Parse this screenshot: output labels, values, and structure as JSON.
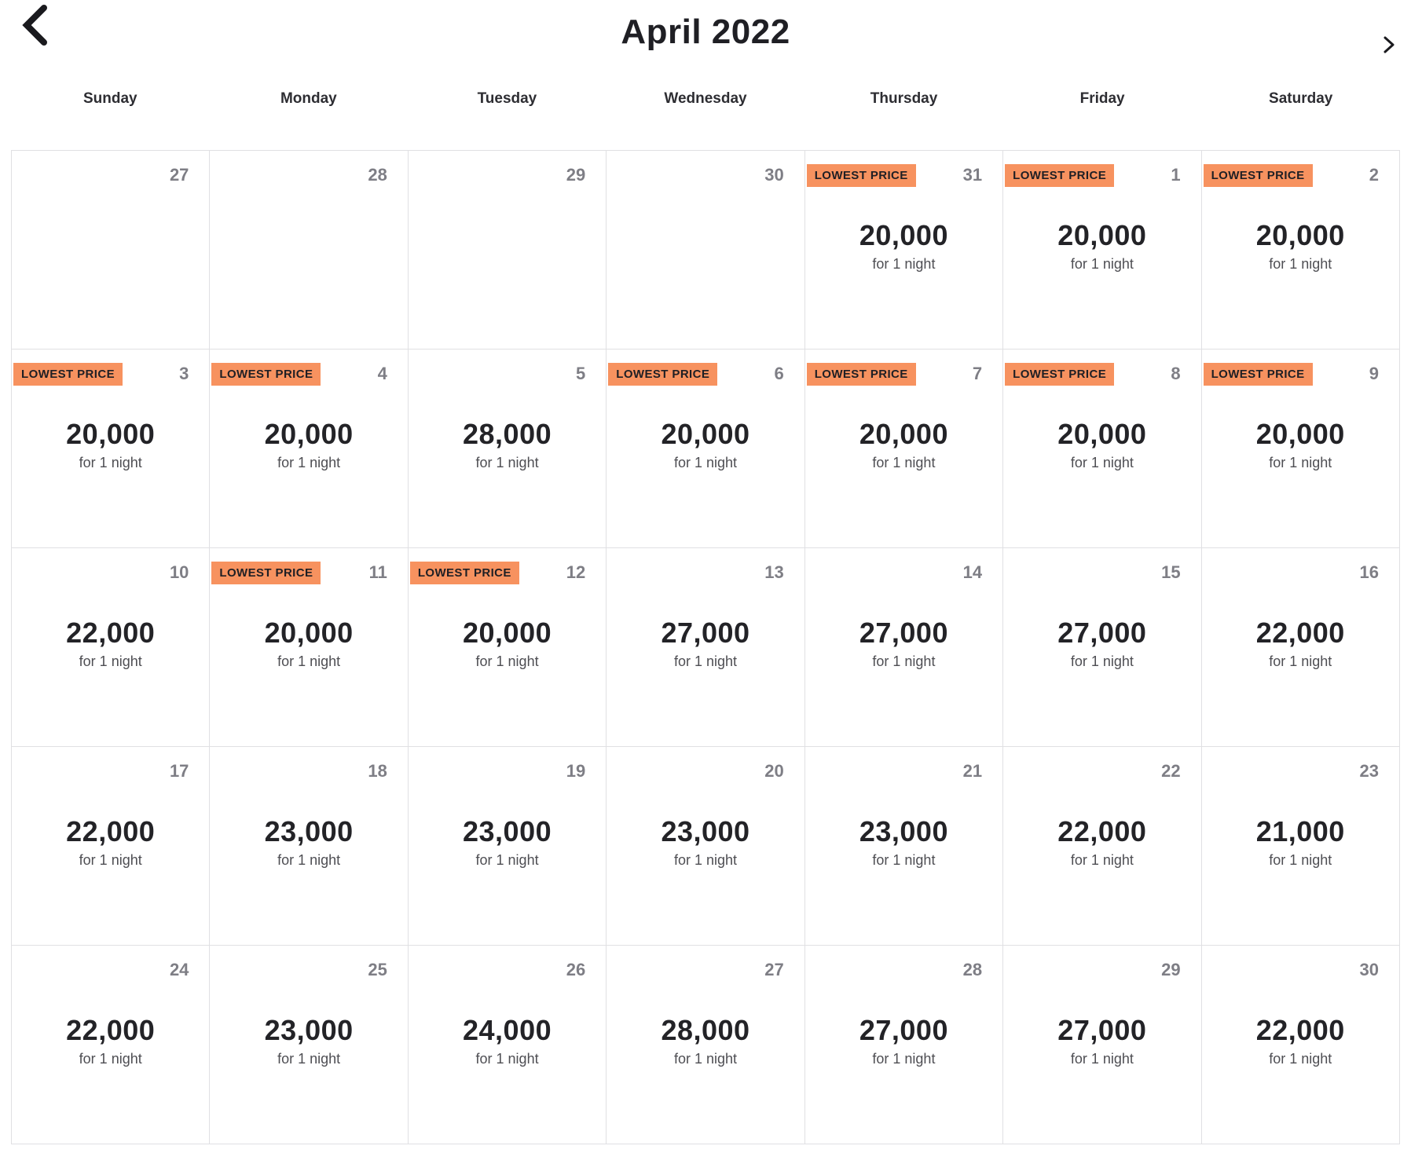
{
  "header": {
    "title": "April 2022",
    "prev_icon": "chevron-left-icon",
    "next_icon": "chevron-right-icon"
  },
  "weekdays": [
    "Sunday",
    "Monday",
    "Tuesday",
    "Wednesday",
    "Thursday",
    "Friday",
    "Saturday"
  ],
  "badge_label": "LOWEST PRICE",
  "price_unit_label": "for 1 night",
  "colors": {
    "badge_bg": "#F7925F",
    "badge_text": "#1F1F24",
    "date_text": "#7E7E85",
    "price_text": "#232327",
    "unit_text": "#4E4E53",
    "grid_border": "#E0E0E3"
  },
  "days": [
    {
      "date": "27",
      "price": null,
      "lowest": false
    },
    {
      "date": "28",
      "price": null,
      "lowest": false
    },
    {
      "date": "29",
      "price": null,
      "lowest": false
    },
    {
      "date": "30",
      "price": null,
      "lowest": false
    },
    {
      "date": "31",
      "price": "20,000",
      "lowest": true
    },
    {
      "date": "1",
      "price": "20,000",
      "lowest": true
    },
    {
      "date": "2",
      "price": "20,000",
      "lowest": true
    },
    {
      "date": "3",
      "price": "20,000",
      "lowest": true
    },
    {
      "date": "4",
      "price": "20,000",
      "lowest": true
    },
    {
      "date": "5",
      "price": "28,000",
      "lowest": false
    },
    {
      "date": "6",
      "price": "20,000",
      "lowest": true
    },
    {
      "date": "7",
      "price": "20,000",
      "lowest": true
    },
    {
      "date": "8",
      "price": "20,000",
      "lowest": true
    },
    {
      "date": "9",
      "price": "20,000",
      "lowest": true
    },
    {
      "date": "10",
      "price": "22,000",
      "lowest": false
    },
    {
      "date": "11",
      "price": "20,000",
      "lowest": true
    },
    {
      "date": "12",
      "price": "20,000",
      "lowest": true
    },
    {
      "date": "13",
      "price": "27,000",
      "lowest": false
    },
    {
      "date": "14",
      "price": "27,000",
      "lowest": false
    },
    {
      "date": "15",
      "price": "27,000",
      "lowest": false
    },
    {
      "date": "16",
      "price": "22,000",
      "lowest": false
    },
    {
      "date": "17",
      "price": "22,000",
      "lowest": false
    },
    {
      "date": "18",
      "price": "23,000",
      "lowest": false
    },
    {
      "date": "19",
      "price": "23,000",
      "lowest": false
    },
    {
      "date": "20",
      "price": "23,000",
      "lowest": false
    },
    {
      "date": "21",
      "price": "23,000",
      "lowest": false
    },
    {
      "date": "22",
      "price": "22,000",
      "lowest": false
    },
    {
      "date": "23",
      "price": "21,000",
      "lowest": false
    },
    {
      "date": "24",
      "price": "22,000",
      "lowest": false
    },
    {
      "date": "25",
      "price": "23,000",
      "lowest": false
    },
    {
      "date": "26",
      "price": "24,000",
      "lowest": false
    },
    {
      "date": "27",
      "price": "28,000",
      "lowest": false
    },
    {
      "date": "28",
      "price": "27,000",
      "lowest": false
    },
    {
      "date": "29",
      "price": "27,000",
      "lowest": false
    },
    {
      "date": "30",
      "price": "22,000",
      "lowest": false
    }
  ]
}
